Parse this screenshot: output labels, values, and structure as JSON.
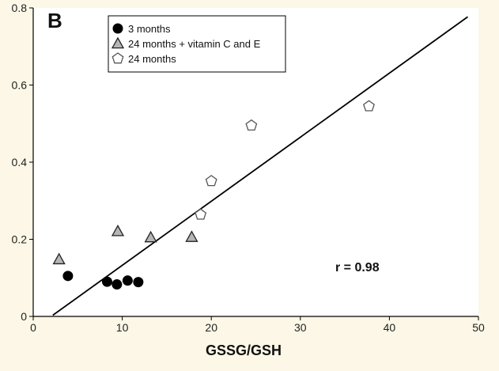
{
  "chart_data": {
    "type": "scatter",
    "panel_label": "B",
    "title": "",
    "xlabel": "GSSG/GSH",
    "ylabel": "",
    "xlim": [
      0,
      50
    ],
    "ylim": [
      0,
      0.8
    ],
    "x_ticks": [
      0,
      10,
      20,
      30,
      40,
      50
    ],
    "y_ticks": [
      0,
      0.2,
      0.4,
      0.6,
      0.8
    ],
    "x_tick_labels": [
      "0",
      "10",
      "20",
      "30",
      "40",
      "50"
    ],
    "y_tick_labels": [
      "0",
      "0.2",
      "0.4",
      "0.6",
      "0.8"
    ],
    "grid": false,
    "legend_position": "top-left",
    "series": [
      {
        "name": "3 months",
        "marker": "circle",
        "color": "#000000",
        "points": [
          [
            3.9,
            0.105
          ],
          [
            8.3,
            0.09
          ],
          [
            9.4,
            0.083
          ],
          [
            10.6,
            0.093
          ],
          [
            11.8,
            0.089
          ]
        ]
      },
      {
        "name": "24 months + vitamin C and E",
        "marker": "triangle",
        "color": "#b5b5b5",
        "points": [
          [
            2.9,
            0.148
          ],
          [
            9.5,
            0.221
          ],
          [
            13.2,
            0.205
          ],
          [
            17.8,
            0.206
          ]
        ]
      },
      {
        "name": "24 months",
        "marker": "pentagon",
        "color": "#ffffff",
        "points": [
          [
            18.8,
            0.264
          ],
          [
            20.0,
            0.351
          ],
          [
            24.5,
            0.495
          ],
          [
            37.7,
            0.545
          ]
        ]
      }
    ],
    "fit_line": {
      "x": [
        2.2,
        48.8
      ],
      "y": [
        0.003,
        0.777
      ],
      "color": "#000000"
    },
    "annotations": [
      {
        "text": "r = 0.98"
      }
    ]
  }
}
